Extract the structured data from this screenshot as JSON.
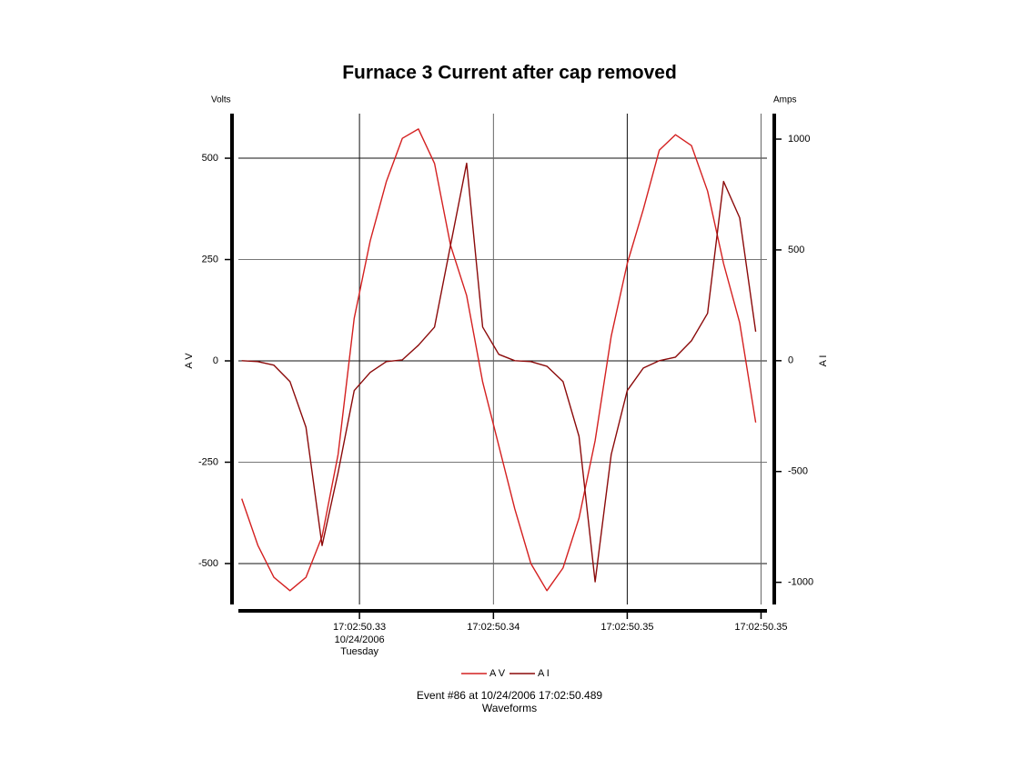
{
  "chart_data": {
    "type": "line",
    "title": "Furnace 3 Current after cap removed",
    "y_unit_label": "Volts",
    "y2_unit_label": "Amps",
    "ylabel": "A V",
    "y2label": "A I",
    "footer": [
      "Event #86 at 10/24/2006 17:02:50.489",
      "Waveforms"
    ],
    "x": [
      50.326,
      50.327,
      50.328,
      50.329,
      50.33,
      50.331,
      50.332,
      50.333,
      50.334,
      50.335,
      50.336,
      50.337,
      50.338,
      50.339,
      50.34,
      50.341,
      50.342,
      50.343,
      50.344,
      50.345,
      50.346,
      50.347,
      50.348,
      50.349,
      50.35,
      50.351,
      50.352,
      50.353,
      50.354,
      50.355,
      50.356,
      50.357,
      50.358
    ],
    "xlim": [
      50.32579,
      50.3587
    ],
    "xticks": [
      {
        "value": 50.33333,
        "label": "17:02:50.33"
      },
      {
        "value": 50.34167,
        "label": "17:02:50.34"
      },
      {
        "value": 50.35,
        "label": "17:02:50.35"
      },
      {
        "value": 50.35833,
        "label": "17:02:50.35"
      }
    ],
    "x_tick_sublabels": [
      "10/24/2006",
      "Tuesday"
    ],
    "ylim": [
      -601,
      610
    ],
    "yticks": [
      -500,
      -250,
      0,
      250,
      500
    ],
    "y2lim": [
      -1100,
      1115
    ],
    "y2ticks": [
      -1000,
      -500,
      0,
      500,
      1000
    ],
    "grid": true,
    "legend": "bottom",
    "series": [
      {
        "name": "A V",
        "color": "#d42020",
        "values": [
          -340,
          -455,
          -534,
          -567,
          -534,
          -433,
          -231,
          105,
          296,
          442,
          549,
          572,
          487,
          285,
          161,
          -52,
          -209,
          -365,
          -500,
          -567,
          -511,
          -388,
          -197,
          61,
          240,
          374,
          520,
          558,
          531,
          419,
          240,
          94,
          -152
        ]
      },
      {
        "name": "A I",
        "color": "#8b0a0a",
        "axis": "y2",
        "values": [
          0,
          -4,
          -20,
          -94,
          -300,
          -834,
          -505,
          -135,
          -53,
          -4,
          4,
          70,
          152,
          521,
          891,
          152,
          29,
          0,
          -4,
          -25,
          -94,
          -341,
          -998,
          -423,
          -135,
          -33,
          0,
          16,
          90,
          214,
          809,
          645,
          131
        ]
      }
    ]
  }
}
